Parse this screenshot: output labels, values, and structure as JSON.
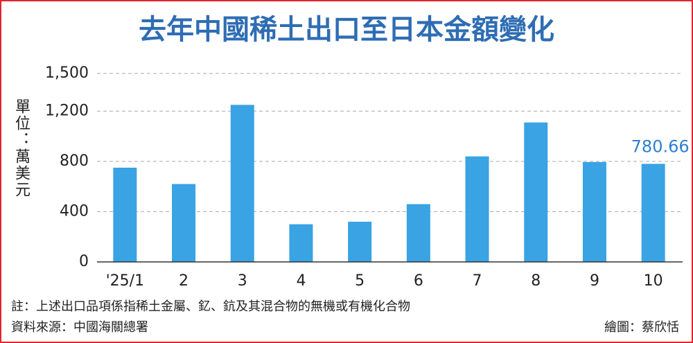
{
  "chart_data": {
    "type": "bar",
    "title": "去年中國稀土出口至日本金額變化",
    "y_label": "單位：萬美元",
    "categories": [
      "'25/1",
      "2",
      "3",
      "4",
      "5",
      "6",
      "7",
      "8",
      "9",
      "10"
    ],
    "values": [
      750,
      620,
      1250,
      300,
      320,
      460,
      840,
      1110,
      795,
      780.66
    ],
    "value_labels": [
      null,
      null,
      null,
      null,
      null,
      null,
      null,
      null,
      null,
      "780.66"
    ],
    "color": "#39a3e3",
    "label_color": "#2e7fd0",
    "ylim": [
      0,
      1500
    ],
    "yticks": [
      0,
      400,
      800,
      {
        "value": 1200,
        "label": "1,200"
      },
      {
        "value": 1500,
        "label": "1,500"
      }
    ],
    "grid": true,
    "note": "註：上述出口品項係指稀土金屬、釔、鈧及其混合物的無機或有機化合物",
    "source": "資料來源：中國海關總署",
    "credit": "繪圖：蔡欣恬"
  }
}
